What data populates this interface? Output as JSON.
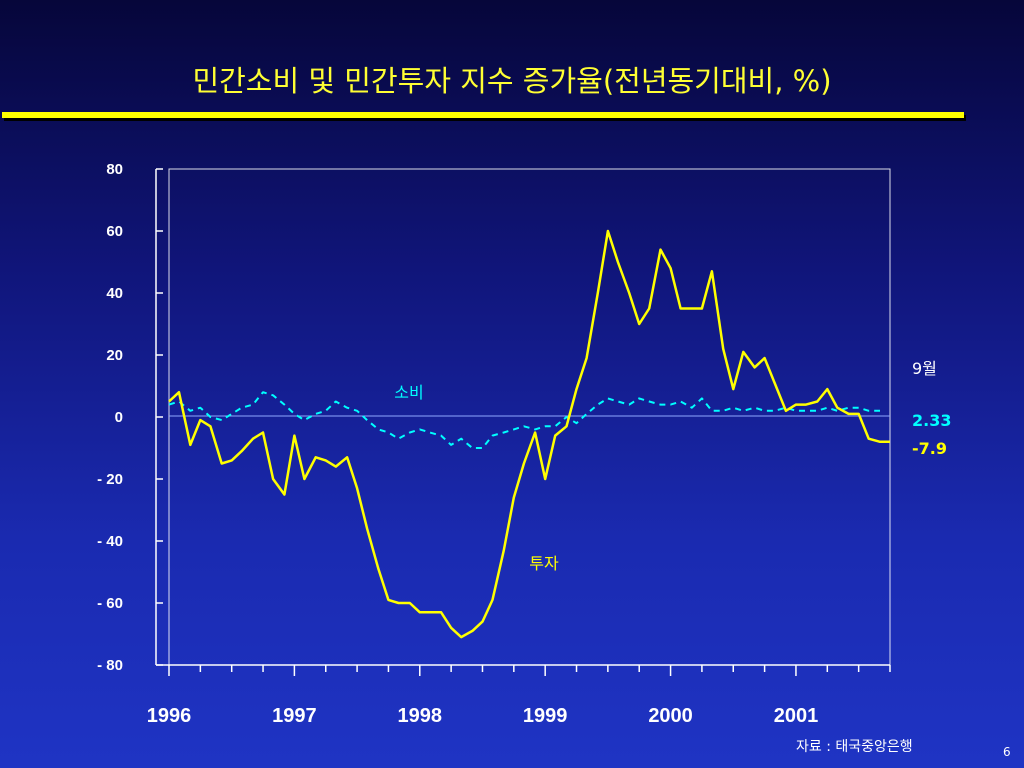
{
  "slide": {
    "title": "민간소비 및 민간투자 지수 증가율(전년동기대비, %)",
    "source": "자료 : 태국중앙은행",
    "page_number": "6"
  },
  "chart_data": {
    "type": "line",
    "ylim": [
      -80,
      80
    ],
    "yticks": [
      80,
      60,
      40,
      20,
      0,
      -20,
      -40,
      -60,
      -80
    ],
    "ytick_labels": [
      "80",
      "60",
      "40",
      "20",
      "0",
      "- 20",
      "- 40",
      "- 60",
      "- 80"
    ],
    "xlim": [
      1996.0,
      2001.75
    ],
    "year_labels": [
      "1996",
      "1997",
      "1998",
      "1999",
      "2000",
      "2001"
    ],
    "grid": false,
    "series": [
      {
        "name": "소비",
        "color": "#00ffff",
        "dash": true,
        "x": [
          1996.0,
          1996.08,
          1996.17,
          1996.25,
          1996.33,
          1996.42,
          1996.5,
          1996.58,
          1996.67,
          1996.75,
          1996.83,
          1996.92,
          1997.0,
          1997.08,
          1997.17,
          1997.25,
          1997.33,
          1997.42,
          1997.5,
          1997.58,
          1997.67,
          1997.75,
          1997.83,
          1997.92,
          1998.0,
          1998.08,
          1998.17,
          1998.25,
          1998.33,
          1998.42,
          1998.5,
          1998.58,
          1998.67,
          1998.75,
          1998.83,
          1998.92,
          1999.0,
          1999.08,
          1999.17,
          1999.25,
          1999.33,
          1999.42,
          1999.5,
          1999.58,
          1999.67,
          1999.75,
          1999.83,
          1999.92,
          2000.0,
          2000.08,
          2000.17,
          2000.25,
          2000.33,
          2000.42,
          2000.5,
          2000.58,
          2000.67,
          2000.75,
          2000.83,
          2000.92,
          2001.0,
          2001.08,
          2001.17,
          2001.25,
          2001.33,
          2001.42,
          2001.5,
          2001.58,
          2001.67
        ],
        "values": [
          4,
          5,
          2,
          3,
          0,
          -1,
          1,
          3,
          4,
          8,
          7,
          4,
          1,
          -1,
          1,
          2,
          5,
          3,
          2,
          -1,
          -4,
          -5,
          -7,
          -5,
          -4,
          -5,
          -6,
          -9,
          -7,
          -10,
          -10,
          -6,
          -5,
          -4,
          -3,
          -4,
          -3,
          -3,
          0,
          -2,
          1,
          4,
          6,
          5,
          4,
          6,
          5,
          4,
          4,
          5,
          3,
          6,
          2,
          2,
          3,
          2,
          3,
          2,
          2,
          3,
          2,
          2,
          2,
          3,
          2,
          3,
          3,
          2,
          2
        ]
      },
      {
        "name": "투자",
        "color": "#ffff00",
        "dash": false,
        "x": [
          1996.0,
          1996.08,
          1996.17,
          1996.25,
          1996.33,
          1996.42,
          1996.5,
          1996.58,
          1996.67,
          1996.75,
          1996.83,
          1996.92,
          1997.0,
          1997.08,
          1997.17,
          1997.25,
          1997.33,
          1997.42,
          1997.5,
          1997.58,
          1997.67,
          1997.75,
          1997.83,
          1997.92,
          1998.0,
          1998.08,
          1998.17,
          1998.25,
          1998.33,
          1998.42,
          1998.5,
          1998.58,
          1998.67,
          1998.75,
          1998.83,
          1998.92,
          1999.0,
          1999.08,
          1999.17,
          1999.25,
          1999.33,
          1999.42,
          1999.5,
          1999.58,
          1999.67,
          1999.75,
          1999.83,
          1999.92,
          2000.0,
          2000.08,
          2000.17,
          2000.25,
          2000.33,
          2000.42,
          2000.5,
          2000.58,
          2000.67,
          2000.75,
          2000.83,
          2000.92,
          2001.0,
          2001.08,
          2001.17,
          2001.25,
          2001.33,
          2001.42,
          2001.5,
          2001.58,
          2001.67,
          2001.75
        ],
        "values": [
          5,
          8,
          -9,
          -1,
          -3,
          -15,
          -14,
          -11,
          -7,
          -5,
          -20,
          -25,
          -6,
          -20,
          -13,
          -14,
          -16,
          -13,
          -23,
          -36,
          -49,
          -59,
          -60,
          -60,
          -63,
          -63,
          -63,
          -68,
          -71,
          -69,
          -66,
          -59,
          -43,
          -26,
          -15,
          -5,
          -20,
          -6,
          -3,
          9,
          19,
          40,
          60,
          50,
          40,
          30,
          35,
          54,
          48,
          35,
          35,
          35,
          47,
          22,
          9,
          21,
          16,
          19,
          11,
          2,
          4,
          4,
          5,
          9,
          3,
          1,
          1,
          -7,
          -8,
          -8
        ]
      }
    ],
    "annotations": {
      "consumption_label": "소비",
      "investment_label": "투자",
      "month_label": "9월",
      "consumption_last": "2.33",
      "investment_last": "-7.9"
    }
  }
}
